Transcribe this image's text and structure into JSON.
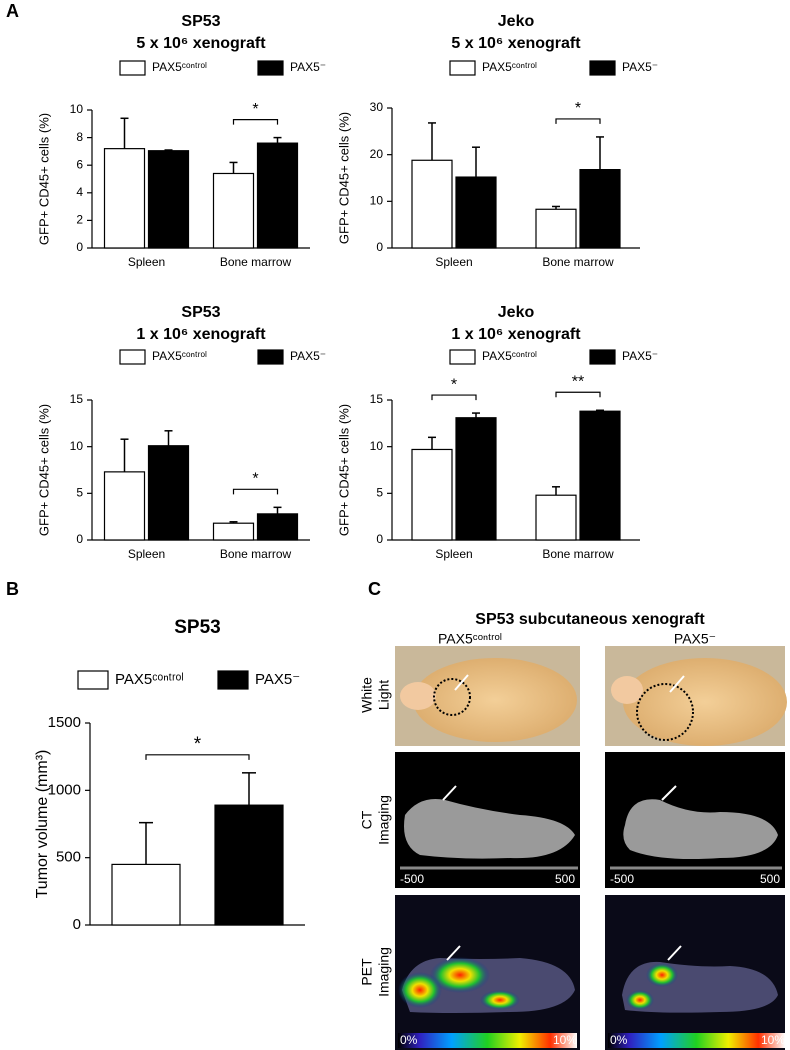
{
  "panels": [
    "A",
    "B",
    "C"
  ],
  "chart_data": [
    {
      "type": "bar",
      "title": [
        "SP53",
        "5 x 10⁶ xenograft"
      ],
      "y_label": "GFP+ CD45+ cells (%)",
      "categories": [
        "Spleen",
        "Bone marrow"
      ],
      "series": [
        {
          "name": "PAX5ᶜᵒⁿᵗʳᵒˡ",
          "color": "#ffffff",
          "values": [
            7.2,
            5.4
          ],
          "errors": [
            2.2,
            0.8
          ]
        },
        {
          "name": "PAX5⁻",
          "color": "#000000",
          "values": [
            7.05,
            7.6
          ],
          "errors": [
            0.05,
            0.4
          ]
        }
      ],
      "ylim": [
        0,
        10
      ],
      "yticks": [
        0,
        2,
        4,
        6,
        8,
        10
      ],
      "annotations": [
        {
          "text": "*",
          "category": "Bone marrow"
        }
      ]
    },
    {
      "type": "bar",
      "title": [
        "Jeko",
        "5 x 10⁶ xenograft"
      ],
      "y_label": "GFP+ CD45+ cells (%)",
      "categories": [
        "Spleen",
        "Bone marrow"
      ],
      "series": [
        {
          "name": "PAX5ᶜᵒⁿᵗʳᵒˡ",
          "color": "#ffffff",
          "values": [
            18.8,
            8.3
          ],
          "errors": [
            8,
            0.6
          ]
        },
        {
          "name": "PAX5⁻",
          "color": "#000000",
          "values": [
            15.2,
            16.8
          ],
          "errors": [
            6.4,
            7
          ]
        }
      ],
      "ylim": [
        0,
        30
      ],
      "yticks": [
        0,
        10,
        20,
        30
      ],
      "annotations": [
        {
          "text": "*",
          "category": "Bone marrow"
        }
      ]
    },
    {
      "type": "bar",
      "title": [
        "SP53",
        "1 x 10⁶ xenograft"
      ],
      "y_label": "GFP+ CD45+ cells (%)",
      "categories": [
        "Spleen",
        "Bone marrow"
      ],
      "series": [
        {
          "name": "PAX5ᶜᵒⁿᵗʳᵒˡ",
          "color": "#ffffff",
          "values": [
            7.3,
            1.8
          ],
          "errors": [
            3.5,
            0.15
          ]
        },
        {
          "name": "PAX5⁻",
          "color": "#000000",
          "values": [
            10.1,
            2.8
          ],
          "errors": [
            1.6,
            0.7
          ]
        }
      ],
      "ylim": [
        0,
        15
      ],
      "yticks": [
        0,
        5,
        10,
        15
      ],
      "annotations": [
        {
          "text": "*",
          "category": "Bone marrow"
        }
      ]
    },
    {
      "type": "bar",
      "title": [
        "Jeko",
        "1 x 10⁶ xenograft"
      ],
      "y_label": "GFP+ CD45+ cells (%)",
      "categories": [
        "Spleen",
        "Bone marrow"
      ],
      "series": [
        {
          "name": "PAX5ᶜᵒⁿᵗʳᵒˡ",
          "color": "#ffffff",
          "values": [
            9.7,
            4.8
          ],
          "errors": [
            1.3,
            0.9
          ]
        },
        {
          "name": "PAX5⁻",
          "color": "#000000",
          "values": [
            13.1,
            13.8
          ],
          "errors": [
            0.5,
            0.1
          ]
        }
      ],
      "ylim": [
        0,
        15
      ],
      "yticks": [
        0,
        5,
        10,
        15
      ],
      "annotations": [
        {
          "text": "*",
          "category": "Spleen"
        },
        {
          "text": "**",
          "category": "Bone marrow"
        }
      ]
    },
    {
      "type": "bar",
      "title": [
        "SP53"
      ],
      "y_label": "Tumor volume (mm³)",
      "categories": [
        null
      ],
      "series": [
        {
          "name": "PAX5ᶜᵒⁿᵗʳᵒˡ",
          "color": "#ffffff",
          "values": [
            450
          ],
          "errors": [
            310
          ]
        },
        {
          "name": "PAX5⁻",
          "color": "#000000",
          "values": [
            890
          ],
          "errors": [
            240
          ]
        }
      ],
      "ylim": [
        0,
        1500
      ],
      "yticks": [
        0,
        500,
        1000,
        1500
      ],
      "annotations": [
        {
          "text": "*",
          "category": null
        }
      ]
    }
  ],
  "imaging": {
    "title": "SP53 subcutaneous xenograft",
    "columns": [
      "PAX5ᶜᵒⁿᵗʳᵒˡ",
      "PAX5⁻"
    ],
    "rows": [
      [
        "White",
        "Light"
      ],
      [
        "CT",
        "Imaging"
      ],
      [
        "PET",
        "Imaging"
      ]
    ],
    "ct_scale": [
      "-500",
      "500"
    ],
    "pet_scale": [
      "0%",
      "10%"
    ]
  }
}
